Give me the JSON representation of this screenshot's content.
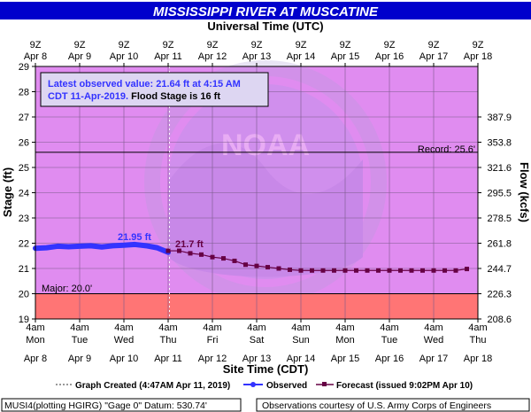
{
  "title": "MISSISSIPPI RIVER AT MUSCATINE",
  "top_axis_title": "Universal Time (UTC)",
  "bottom_axis_title": "Site Time (CDT)",
  "left_axis_title": "Stage (ft)",
  "right_axis_title": "Flow (kcfs)",
  "callout": {
    "line1": "Latest observed value: 21.64 ft at 4:15 AM",
    "line2_blue": "CDT 11-Apr-2019.",
    "line2_black": " Flood Stage is 16 ft"
  },
  "annotations": {
    "record_label": "Record: 25.6'",
    "major_label": "Major: 20.0'",
    "obs_crest_label": "21.95 ft",
    "fcst_crest_label": "21.7 ft"
  },
  "legend": {
    "graph_created": "Graph Created (4:47AM Apr 11, 2019)",
    "observed": "Observed",
    "forecast": "Forecast (issued 9:02PM Apr 10)"
  },
  "footer": {
    "left": "MUSI4(plotting HGIRG) \"Gage 0\" Datum:  530.74'",
    "right": "Observations courtesy of U.S. Army Corps of Engineers"
  },
  "colors": {
    "title_bg": "#0000cc",
    "plot_bg": "#e08cf0",
    "major_band": "#ff7575",
    "observed": "#3333ff",
    "forecast": "#660044",
    "outer_bg": "#ffffff"
  },
  "chart_data": {
    "type": "line",
    "ylim": [
      19,
      29
    ],
    "y_ticks": [
      "19",
      "20",
      "21",
      "22",
      "23",
      "24",
      "25",
      "26",
      "27",
      "28",
      "29"
    ],
    "right_ticks": [
      {
        "stage": 19.0,
        "label": "208.6"
      },
      {
        "stage": 20.0,
        "label": "226.3"
      },
      {
        "stage": 21.0,
        "label": "244.7"
      },
      {
        "stage": 22.0,
        "label": "261.8"
      },
      {
        "stage": 23.0,
        "label": "278.5"
      },
      {
        "stage": 24.0,
        "label": "295.5"
      },
      {
        "stage": 25.0,
        "label": "321.6"
      },
      {
        "stage": 26.0,
        "label": "353.8"
      },
      {
        "stage": 27.0,
        "label": "387.9"
      }
    ],
    "x_start_day": 8,
    "x_end_day": 18,
    "top_ticks": [
      {
        "t": "9Z",
        "d": "Apr 8"
      },
      {
        "t": "9Z",
        "d": "Apr 9"
      },
      {
        "t": "9Z",
        "d": "Apr 10"
      },
      {
        "t": "9Z",
        "d": "Apr 11"
      },
      {
        "t": "9Z",
        "d": "Apr 12"
      },
      {
        "t": "9Z",
        "d": "Apr 13"
      },
      {
        "t": "9Z",
        "d": "Apr 14"
      },
      {
        "t": "9Z",
        "d": "Apr 15"
      },
      {
        "t": "9Z",
        "d": "Apr 16"
      },
      {
        "t": "9Z",
        "d": "Apr 17"
      },
      {
        "t": "9Z",
        "d": "Apr 18"
      }
    ],
    "bottom_ticks": [
      {
        "t": "4am",
        "w": "Mon",
        "d": "Apr 8"
      },
      {
        "t": "4am",
        "w": "Tue",
        "d": "Apr 9"
      },
      {
        "t": "4am",
        "w": "Wed",
        "d": "Apr 10"
      },
      {
        "t": "4am",
        "w": "Thu",
        "d": "Apr 11"
      },
      {
        "t": "4am",
        "w": "Fri",
        "d": "Apr 12"
      },
      {
        "t": "4am",
        "w": "Sat",
        "d": "Apr 13"
      },
      {
        "t": "4am",
        "w": "Sun",
        "d": "Apr 14"
      },
      {
        "t": "4am",
        "w": "Mon",
        "d": "Apr 15"
      },
      {
        "t": "4am",
        "w": "Tue",
        "d": "Apr 16"
      },
      {
        "t": "4am",
        "w": "Wed",
        "d": "Apr 17"
      },
      {
        "t": "4am",
        "w": "Thu",
        "d": "Apr 18"
      }
    ],
    "record_stage": 25.6,
    "major_stage": 20.0,
    "graph_created_day": 11.03,
    "series": [
      {
        "name": "Observed",
        "x": [
          8.0,
          8.25,
          8.5,
          8.75,
          9.0,
          9.25,
          9.5,
          9.75,
          10.0,
          10.25,
          10.5,
          10.75,
          11.0
        ],
        "y": [
          21.8,
          21.82,
          21.88,
          21.86,
          21.88,
          21.9,
          21.85,
          21.9,
          21.92,
          21.95,
          21.9,
          21.82,
          21.64
        ]
      },
      {
        "name": "Forecast (issued 9:02PM Apr 10)",
        "x": [
          11.0,
          11.25,
          11.5,
          11.75,
          12.0,
          12.25,
          12.5,
          12.75,
          13.0,
          13.25,
          13.5,
          13.75,
          14.0,
          14.25,
          14.5,
          14.75,
          15.0,
          15.25,
          15.5,
          15.75,
          16.0,
          16.25,
          16.5,
          16.75,
          17.0,
          17.25,
          17.5,
          17.75
        ],
        "y": [
          21.7,
          21.7,
          21.6,
          21.55,
          21.45,
          21.4,
          21.3,
          21.15,
          21.1,
          21.05,
          21.0,
          20.95,
          20.92,
          20.92,
          20.92,
          20.92,
          20.92,
          20.92,
          20.92,
          20.92,
          20.92,
          20.92,
          20.92,
          20.92,
          20.92,
          20.92,
          20.92,
          20.98
        ]
      }
    ],
    "grid": true
  }
}
